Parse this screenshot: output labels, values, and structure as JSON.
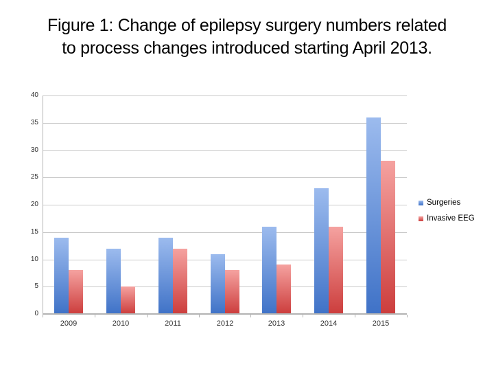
{
  "title": {
    "line1": "Figure 1: Change of epilepsy surgery numbers related",
    "line2": "to process changes introduced starting April 2013."
  },
  "chart_data": {
    "type": "bar",
    "title": "Figure 1: Change of epilepsy surgery numbers related to process changes introduced starting April 2013.",
    "categories": [
      "2009",
      "2010",
      "2011",
      "2012",
      "2013",
      "2014",
      "2015"
    ],
    "series": [
      {
        "name": "Surgeries",
        "values": [
          14,
          12,
          14,
          11,
          16,
          23,
          36
        ],
        "color_top": "#9cbbee",
        "color_bottom": "#3f72c7"
      },
      {
        "name": "Invasive EEG",
        "values": [
          8,
          5,
          12,
          8,
          9,
          16,
          28
        ],
        "color_top": "#f5a2a0",
        "color_bottom": "#cc3d3c"
      }
    ],
    "xlabel": "",
    "ylabel": "",
    "ylim": [
      0,
      40
    ],
    "yticks": [
      0,
      5,
      10,
      15,
      20,
      25,
      30,
      35,
      40
    ],
    "grid": true,
    "legend_position": "right"
  },
  "colors": {
    "gridline": "#c9c9c9",
    "axis": "#b3b3b3",
    "tick_label": "#303030",
    "background": "#ffffff"
  }
}
